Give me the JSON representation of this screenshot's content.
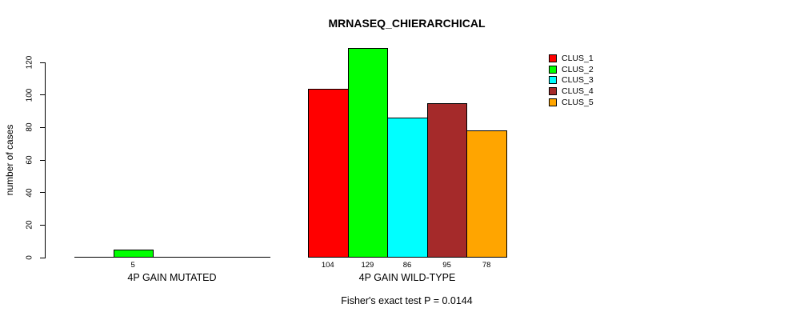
{
  "chart_data": {
    "type": "bar",
    "title": "MRNASEQ_CHIERARCHICAL",
    "ylabel": "number of cases",
    "ylim": [
      0,
      120
    ],
    "yticks": [
      0,
      20,
      40,
      60,
      80,
      100,
      120
    ],
    "grid": false,
    "legend_position": "top-right",
    "categories": [
      "4P GAIN MUTATED",
      "4P GAIN WILD-TYPE"
    ],
    "series": [
      {
        "name": "CLUS_1",
        "color": "#ff0000",
        "values": [
          0,
          104
        ]
      },
      {
        "name": "CLUS_2",
        "color": "#00ff00",
        "values": [
          5,
          129
        ]
      },
      {
        "name": "CLUS_3",
        "color": "#00ffff",
        "values": [
          0,
          86
        ]
      },
      {
        "name": "CLUS_4",
        "color": "#a52a2a",
        "values": [
          0,
          95
        ]
      },
      {
        "name": "CLUS_5",
        "color": "#ffa500",
        "values": [
          0,
          78
        ]
      }
    ],
    "bar_value_labels": {
      "4P GAIN MUTATED": [
        null,
        5,
        null,
        null,
        null
      ],
      "4P GAIN WILD-TYPE": [
        104,
        129,
        86,
        95,
        78
      ]
    },
    "annotation": "Fisher's exact test P = 0.0144"
  }
}
